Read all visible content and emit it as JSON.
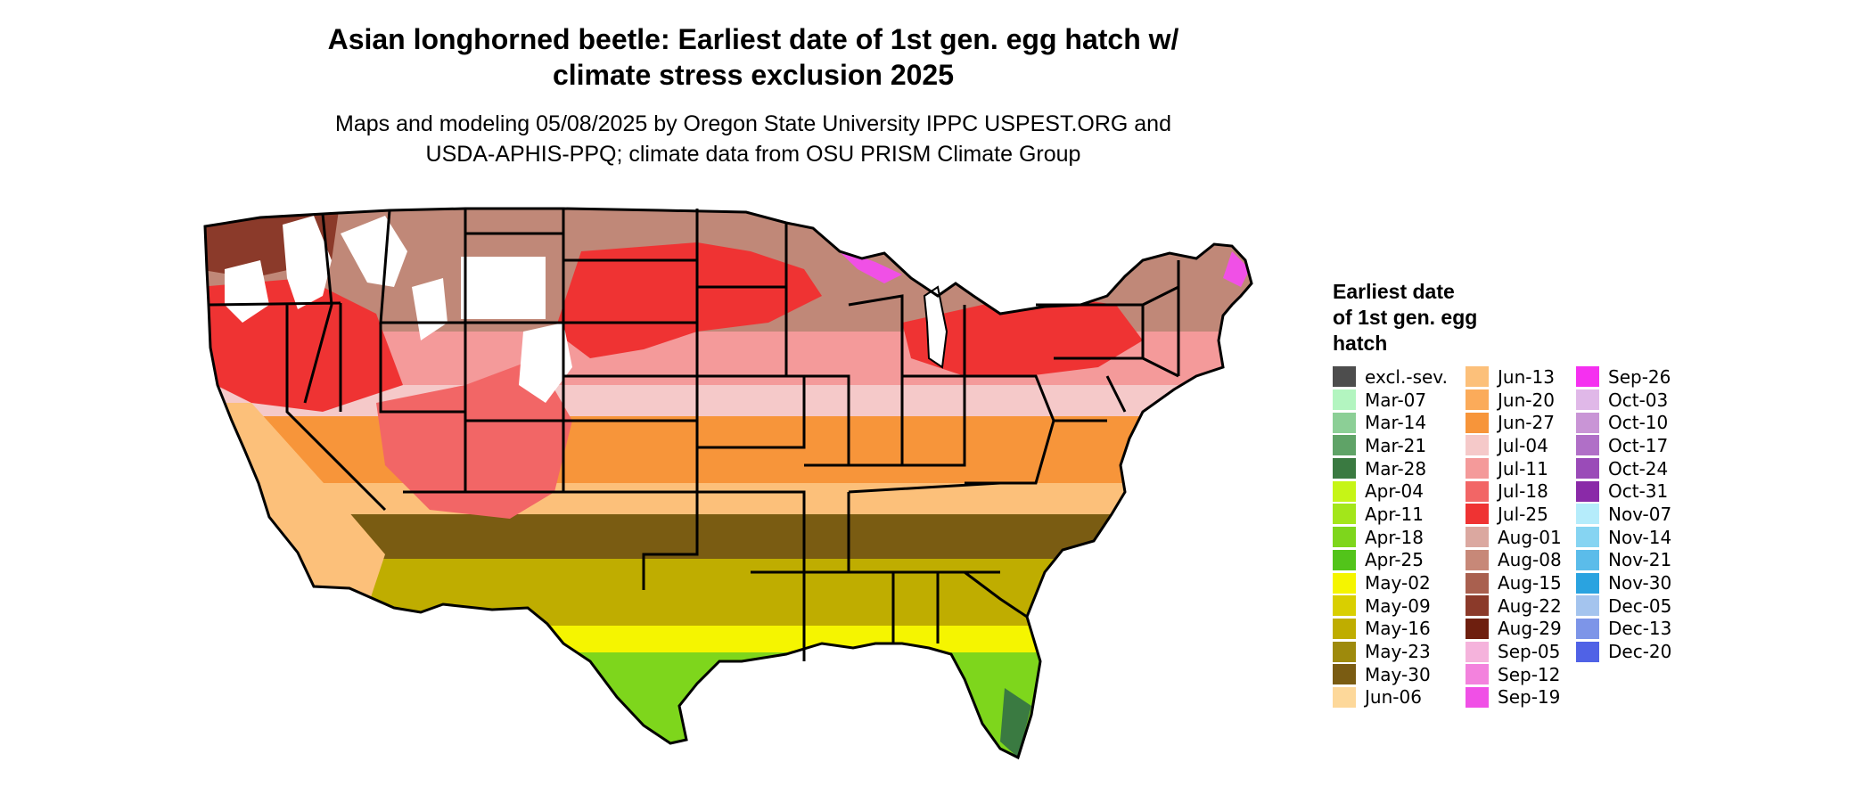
{
  "title_lines": [
    "Asian longhorned beetle: Earliest date of 1st gen. egg hatch w/",
    "climate stress exclusion 2025"
  ],
  "subtitle_lines": [
    "Maps and modeling 05/08/2025 by Oregon State University IPPC USPEST.ORG and",
    "USDA-APHIS-PPQ; climate data from OSU PRISM Climate Group"
  ],
  "legend": {
    "title_lines": [
      "Earliest date",
      "of 1st gen. egg",
      "hatch"
    ],
    "columns": [
      [
        {
          "label": "excl.-sev.",
          "color": "#4d4d4d"
        },
        {
          "label": "Mar-07",
          "color": "#b3f5c0"
        },
        {
          "label": "Mar-14",
          "color": "#8ccf96"
        },
        {
          "label": "Mar-21",
          "color": "#5fa367"
        },
        {
          "label": "Mar-28",
          "color": "#3a7a41"
        },
        {
          "label": "Apr-04",
          "color": "#c6f516"
        },
        {
          "label": "Apr-11",
          "color": "#a3e61a"
        },
        {
          "label": "Apr-18",
          "color": "#7ed61c"
        },
        {
          "label": "Apr-25",
          "color": "#52c41a"
        },
        {
          "label": "May-02",
          "color": "#f5f500"
        },
        {
          "label": "May-09",
          "color": "#d9cf00"
        },
        {
          "label": "May-16",
          "color": "#bfad00"
        },
        {
          "label": "May-23",
          "color": "#9e8a0c"
        },
        {
          "label": "May-30",
          "color": "#7a5c12"
        },
        {
          "label": "Jun-06",
          "color": "#fdd89a"
        }
      ],
      [
        {
          "label": "Jun-13",
          "color": "#fcc07a"
        },
        {
          "label": "Jun-20",
          "color": "#fbab5a"
        },
        {
          "label": "Jun-27",
          "color": "#f7953a"
        },
        {
          "label": "Jul-04",
          "color": "#f5c9c9"
        },
        {
          "label": "Jul-11",
          "color": "#f49a9a"
        },
        {
          "label": "Jul-18",
          "color": "#f26666"
        },
        {
          "label": "Jul-25",
          "color": "#ef3333"
        },
        {
          "label": "Aug-01",
          "color": "#dba8a0"
        },
        {
          "label": "Aug-08",
          "color": "#c78878"
        },
        {
          "label": "Aug-15",
          "color": "#a9604f"
        },
        {
          "label": "Aug-22",
          "color": "#8b3a2a"
        },
        {
          "label": "Aug-29",
          "color": "#6e1f0f"
        },
        {
          "label": "Sep-05",
          "color": "#f5b3dc"
        },
        {
          "label": "Sep-12",
          "color": "#f382dd"
        },
        {
          "label": "Sep-19",
          "color": "#f050e6"
        }
      ],
      [
        {
          "label": "Sep-26",
          "color": "#f530f0"
        },
        {
          "label": "Oct-03",
          "color": "#e0b8e8"
        },
        {
          "label": "Oct-10",
          "color": "#c995d6"
        },
        {
          "label": "Oct-17",
          "color": "#b06fc7"
        },
        {
          "label": "Oct-24",
          "color": "#9a4bb8"
        },
        {
          "label": "Oct-31",
          "color": "#8a2aa8"
        },
        {
          "label": "Nov-07",
          "color": "#b5ecfb"
        },
        {
          "label": "Nov-14",
          "color": "#86d4f2"
        },
        {
          "label": "Nov-21",
          "color": "#5bbcea"
        },
        {
          "label": "Nov-30",
          "color": "#2aa3e0"
        },
        {
          "label": "Dec-05",
          "color": "#a4c4ee"
        },
        {
          "label": "Dec-13",
          "color": "#7d95e8"
        },
        {
          "label": "Dec-20",
          "color": "#5062e6"
        }
      ]
    ]
  },
  "map_colors": {
    "excluded": "#ffffff",
    "north": "#c08878",
    "north_dark": "#8b3a2a",
    "midwest": "#ef3333",
    "midwest_light": "#f49a9a",
    "pink_band": "#f5c9c9",
    "orange": "#f7953a",
    "light_orange": "#fcc07a",
    "brown": "#7a5c12",
    "olive": "#bfad00",
    "yellow": "#f5f500",
    "green": "#7ed61c",
    "mountain_magenta": "#f050e6",
    "border": "#000000"
  }
}
